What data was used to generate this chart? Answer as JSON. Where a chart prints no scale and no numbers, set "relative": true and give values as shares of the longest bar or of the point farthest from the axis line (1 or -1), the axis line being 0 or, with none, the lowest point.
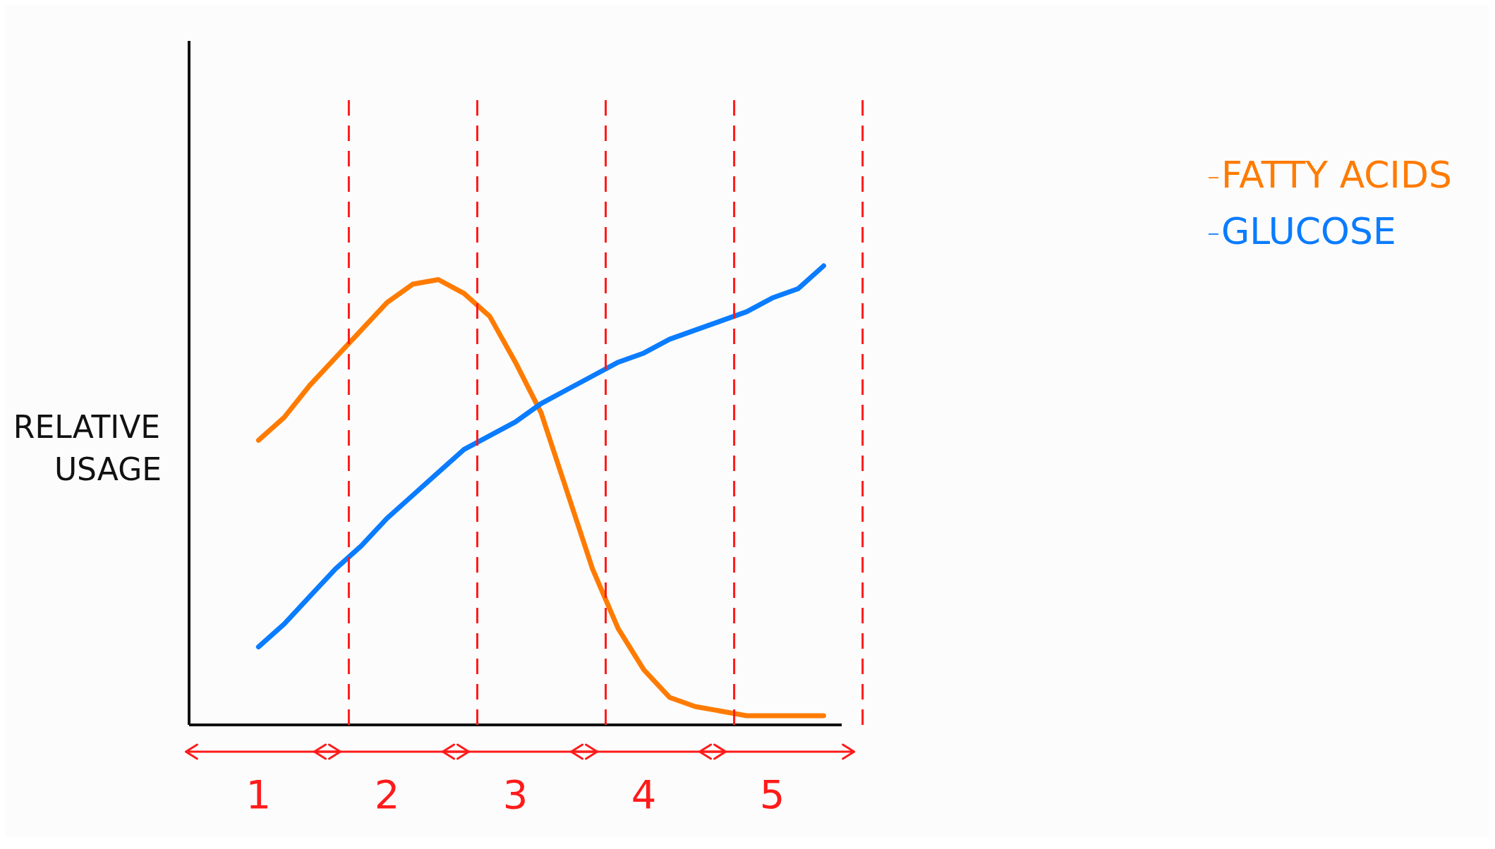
{
  "chart_data": {
    "type": "line",
    "relative": true,
    "ylabel": "RELATIVE USAGE",
    "tick_labels": "x",
    "legend": "top right",
    "grid": "x",
    "categories": [
      null,
      null,
      "1",
      null,
      null,
      null,
      null,
      "2",
      null,
      null,
      null,
      null,
      "3",
      null,
      null,
      null,
      null,
      "4",
      null,
      null,
      null,
      null,
      "5",
      null,
      null
    ],
    "series": [
      {
        "name": "FATTY ACIDS",
        "color": "#ff7b00",
        "values": [
          null,
          null,
          0.62,
          0.67,
          0.74,
          0.8,
          0.86,
          0.92,
          0.96,
          0.97,
          0.94,
          0.89,
          0.79,
          0.68,
          0.51,
          0.34,
          0.21,
          0.12,
          0.06,
          0.04,
          0.03,
          0.02,
          0.02,
          0.02,
          0.02
        ]
      },
      {
        "name": "GLUCOSE",
        "color": "#0a7cff",
        "values": [
          null,
          null,
          0.17,
          0.22,
          0.28,
          0.34,
          0.39,
          0.45,
          0.5,
          0.55,
          0.6,
          0.63,
          0.66,
          0.7,
          0.73,
          0.76,
          0.79,
          0.81,
          0.84,
          0.86,
          0.88,
          0.9,
          0.93,
          0.95,
          1
        ]
      }
    ]
  }
}
